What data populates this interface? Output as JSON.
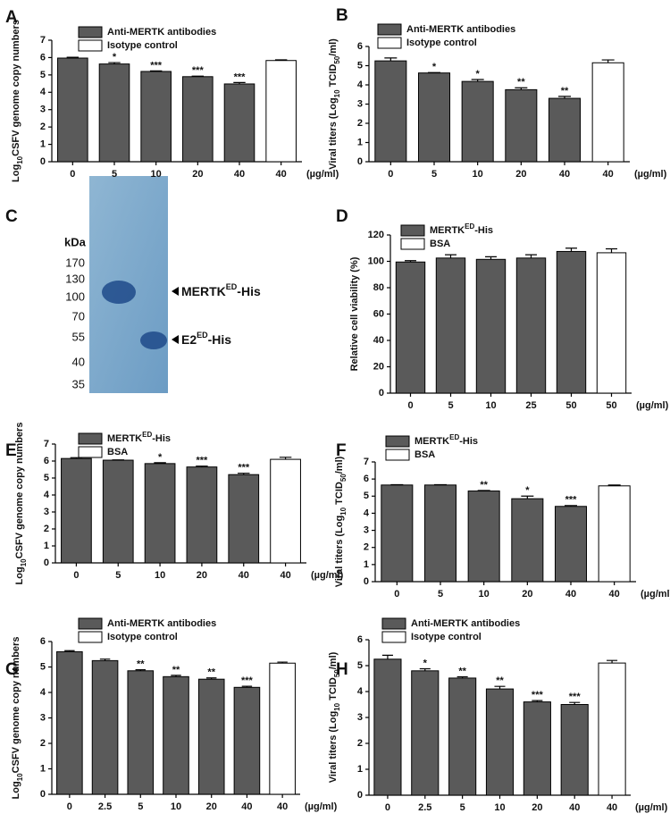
{
  "chart_data": [
    {
      "type": "bar",
      "panel": "A",
      "ylabel": [
        "Log",
        "10",
        "CSFV genome copy numbers"
      ],
      "x_unit": "(µg/ml)",
      "categories": [
        "0",
        "5",
        "10",
        "20",
        "40",
        "40"
      ],
      "series": [
        {
          "name": [
            "Anti-MERTK antibodies"
          ],
          "color": "#5a5a5a",
          "values": [
            5.97,
            5.63,
            5.2,
            4.9,
            4.48,
            null
          ],
          "errors": [
            0.05,
            0.08,
            0.03,
            0.03,
            0.08,
            null
          ]
        },
        {
          "name": [
            "Isotype control"
          ],
          "color": "#ffffff",
          "values": [
            null,
            null,
            null,
            null,
            null,
            5.83
          ],
          "errors": [
            null,
            null,
            null,
            null,
            null,
            0.04
          ]
        }
      ],
      "significance": [
        null,
        "*",
        "***",
        "***",
        "***",
        null
      ],
      "ylim": [
        0,
        7
      ],
      "yticks": [
        0,
        1,
        2,
        3,
        4,
        5,
        6,
        7
      ]
    },
    {
      "type": "bar",
      "panel": "B",
      "ylabel": [
        "Viral titers (Log",
        "10",
        " TCID",
        "50",
        "/ml)"
      ],
      "x_unit": "(µg/ml)",
      "categories": [
        "0",
        "5",
        "10",
        "20",
        "40",
        "40"
      ],
      "series": [
        {
          "name": [
            "Anti-MERTK antibodies"
          ],
          "color": "#5a5a5a",
          "values": [
            5.25,
            4.62,
            4.18,
            3.75,
            3.3,
            null
          ],
          "errors": [
            0.15,
            0.02,
            0.1,
            0.1,
            0.1,
            null
          ]
        },
        {
          "name": [
            "Isotype control"
          ],
          "color": "#ffffff",
          "values": [
            null,
            null,
            null,
            null,
            null,
            5.15
          ],
          "errors": [
            null,
            null,
            null,
            null,
            null,
            0.15
          ]
        }
      ],
      "significance": [
        null,
        "*",
        "*",
        "**",
        "**",
        null
      ],
      "ylim": [
        0,
        6
      ],
      "yticks": [
        0,
        1,
        2,
        3,
        4,
        5,
        6
      ]
    },
    {
      "type": "bar",
      "panel": "D",
      "ylabel": [
        "Relative cell viability (%)"
      ],
      "x_unit": "(µg/ml)",
      "categories": [
        "0",
        "5",
        "10",
        "25",
        "50",
        "50"
      ],
      "series": [
        {
          "name": [
            "MERTK",
            "ED",
            "-His"
          ],
          "color": "#5a5a5a",
          "values": [
            99.5,
            102.5,
            101.5,
            102.5,
            107.5,
            null
          ],
          "errors": [
            1,
            2.5,
            2,
            2.5,
            2.5,
            null
          ]
        },
        {
          "name": [
            "BSA"
          ],
          "color": "#ffffff",
          "values": [
            null,
            null,
            null,
            null,
            null,
            106.5
          ],
          "errors": [
            null,
            null,
            null,
            null,
            null,
            3
          ]
        }
      ],
      "significance": [
        null,
        null,
        null,
        null,
        null,
        null
      ],
      "ylim": [
        0,
        120
      ],
      "yticks": [
        0,
        20,
        40,
        60,
        80,
        100,
        120
      ]
    },
    {
      "type": "bar",
      "panel": "E",
      "ylabel": [
        "Log",
        "10",
        "CSFV genome copy numbers"
      ],
      "x_unit": "(µg/ml)",
      "categories": [
        "0",
        "5",
        "10",
        "20",
        "40",
        "40"
      ],
      "series": [
        {
          "name": [
            "MERTK",
            "ED",
            "-His"
          ],
          "color": "#5a5a5a",
          "values": [
            6.15,
            6.05,
            5.85,
            5.65,
            5.2,
            null
          ],
          "errors": [
            0.05,
            0.02,
            0.05,
            0.05,
            0.08,
            null
          ]
        },
        {
          "name": [
            "BSA"
          ],
          "color": "#ffffff",
          "values": [
            null,
            null,
            null,
            null,
            null,
            6.1
          ],
          "errors": [
            null,
            null,
            null,
            null,
            null,
            0.12
          ]
        }
      ],
      "significance": [
        null,
        null,
        "*",
        "***",
        "***",
        null
      ],
      "ylim": [
        0,
        7
      ],
      "yticks": [
        0,
        1,
        2,
        3,
        4,
        5,
        6,
        7
      ]
    },
    {
      "type": "bar",
      "panel": "F",
      "ylabel": [
        "Viral titers (Log",
        "10",
        " TCID",
        "50",
        "/ml)"
      ],
      "x_unit": "(µg/ml)",
      "categories": [
        "0",
        "5",
        "10",
        "20",
        "40",
        "40"
      ],
      "series": [
        {
          "name": [
            "MERTK",
            "ED",
            "-His"
          ],
          "color": "#5a5a5a",
          "values": [
            5.65,
            5.65,
            5.3,
            4.85,
            4.4,
            null
          ],
          "errors": [
            0.02,
            0.02,
            0.03,
            0.15,
            0.05,
            null
          ]
        },
        {
          "name": [
            "BSA"
          ],
          "color": "#ffffff",
          "values": [
            null,
            null,
            null,
            null,
            null,
            5.6
          ],
          "errors": [
            null,
            null,
            null,
            null,
            null,
            0.05
          ]
        }
      ],
      "significance": [
        null,
        null,
        "**",
        "*",
        "***",
        null
      ],
      "ylim": [
        0,
        7
      ],
      "yticks": [
        0,
        1,
        2,
        3,
        4,
        5,
        6,
        7
      ]
    },
    {
      "type": "bar",
      "panel": "G",
      "ylabel": [
        "Log",
        "10",
        "CSFV genome copy numbers"
      ],
      "x_unit": "(µg/ml)",
      "categories": [
        "0",
        "2.5",
        "5",
        "10",
        "20",
        "40",
        "40"
      ],
      "series": [
        {
          "name": [
            "Anti-MERTK antibodies"
          ],
          "color": "#5a5a5a",
          "values": [
            5.6,
            5.25,
            4.85,
            4.62,
            4.52,
            4.2,
            null
          ],
          "errors": [
            0.04,
            0.06,
            0.04,
            0.05,
            0.05,
            0.04,
            null
          ]
        },
        {
          "name": [
            "Isotype control"
          ],
          "color": "#ffffff",
          "values": [
            null,
            null,
            null,
            null,
            null,
            null,
            5.15
          ],
          "errors": [
            null,
            null,
            null,
            null,
            null,
            null,
            0.04
          ]
        }
      ],
      "significance": [
        null,
        null,
        "**",
        "**",
        "**",
        "***",
        null
      ],
      "ylim": [
        0,
        6
      ],
      "yticks": [
        0,
        1,
        2,
        3,
        4,
        5,
        6
      ]
    },
    {
      "type": "bar",
      "panel": "H",
      "ylabel": [
        "Viral titers (Log",
        "10",
        " TCID",
        "50",
        "/ml)"
      ],
      "x_unit": "(µg/ml)",
      "categories": [
        "0",
        "2.5",
        "5",
        "10",
        "20",
        "40",
        "40"
      ],
      "series": [
        {
          "name": [
            "Anti-MERTK antibodies"
          ],
          "color": "#5a5a5a",
          "values": [
            5.25,
            4.8,
            4.52,
            4.1,
            3.6,
            3.5,
            null
          ],
          "errors": [
            0.15,
            0.08,
            0.05,
            0.1,
            0.05,
            0.08,
            null
          ]
        },
        {
          "name": [
            "Isotype control"
          ],
          "color": "#ffffff",
          "values": [
            null,
            null,
            null,
            null,
            null,
            null,
            5.1
          ],
          "errors": [
            null,
            null,
            null,
            null,
            null,
            null,
            0.1
          ]
        }
      ],
      "significance": [
        null,
        "*",
        "**",
        "**",
        "***",
        "***",
        null
      ],
      "ylim": [
        0,
        6
      ],
      "yticks": [
        0,
        1,
        2,
        3,
        4,
        5,
        6
      ]
    }
  ],
  "gel": {
    "panel": "C",
    "unit_label": "kDa",
    "markers": [
      "170",
      "130",
      "100",
      "70",
      "55",
      "40",
      "35"
    ],
    "bands": [
      [
        "MERTK",
        "ED",
        "-His"
      ],
      [
        "E2",
        "ED",
        "-His"
      ]
    ]
  }
}
